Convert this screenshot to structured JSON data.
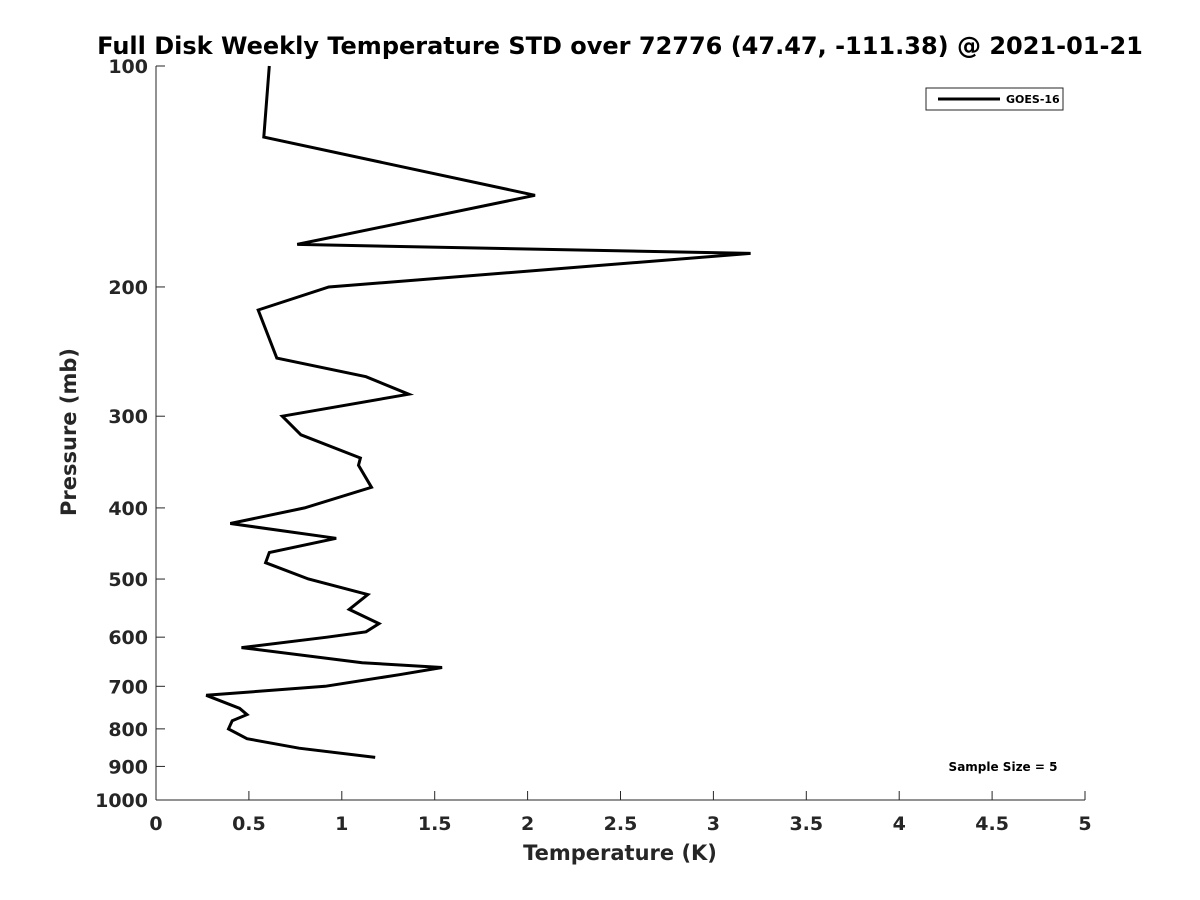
{
  "chart_data": {
    "type": "line",
    "title": "Full Disk Weekly Temperature STD over 72776 (47.47, -111.38) @ 2021-01-21",
    "xlabel": "Temperature (K)",
    "ylabel": "Pressure (mb)",
    "xlim": [
      0,
      5
    ],
    "ylim": [
      100,
      1000
    ],
    "y_scale": "log",
    "y_reversed": true,
    "x_ticks": [
      "0",
      "0.5",
      "1",
      "1.5",
      "2",
      "2.5",
      "3",
      "3.5",
      "4",
      "4.5",
      "5"
    ],
    "y_ticks": [
      "100",
      "200",
      "300",
      "400",
      "500",
      "600",
      "700",
      "800",
      "900",
      "1000"
    ],
    "grid": false,
    "legend_position": "top-right",
    "annotation": "Sample Size = 5",
    "series": [
      {
        "name": "GOES-16",
        "color": "#000000",
        "points": [
          [
            0.61,
            100
          ],
          [
            0.58,
            125
          ],
          [
            2.04,
            150
          ],
          [
            0.76,
            175
          ],
          [
            3.2,
            180
          ],
          [
            0.93,
            200
          ],
          [
            0.55,
            215
          ],
          [
            0.65,
            250
          ],
          [
            1.13,
            265
          ],
          [
            1.36,
            280
          ],
          [
            0.68,
            300
          ],
          [
            0.78,
            318
          ],
          [
            1.1,
            342
          ],
          [
            1.09,
            350
          ],
          [
            1.16,
            375
          ],
          [
            0.8,
            400
          ],
          [
            0.4,
            420
          ],
          [
            0.97,
            440
          ],
          [
            0.61,
            460
          ],
          [
            0.59,
            475
          ],
          [
            0.82,
            500
          ],
          [
            1.14,
            525
          ],
          [
            1.04,
            550
          ],
          [
            1.2,
            575
          ],
          [
            1.13,
            590
          ],
          [
            0.92,
            600
          ],
          [
            0.46,
            620
          ],
          [
            1.11,
            650
          ],
          [
            1.54,
            660
          ],
          [
            1.31,
            675
          ],
          [
            0.91,
            700
          ],
          [
            0.27,
            720
          ],
          [
            0.45,
            750
          ],
          [
            0.49,
            765
          ],
          [
            0.41,
            780
          ],
          [
            0.39,
            800
          ],
          [
            0.49,
            825
          ],
          [
            0.77,
            850
          ],
          [
            1.18,
            875
          ]
        ]
      }
    ]
  }
}
